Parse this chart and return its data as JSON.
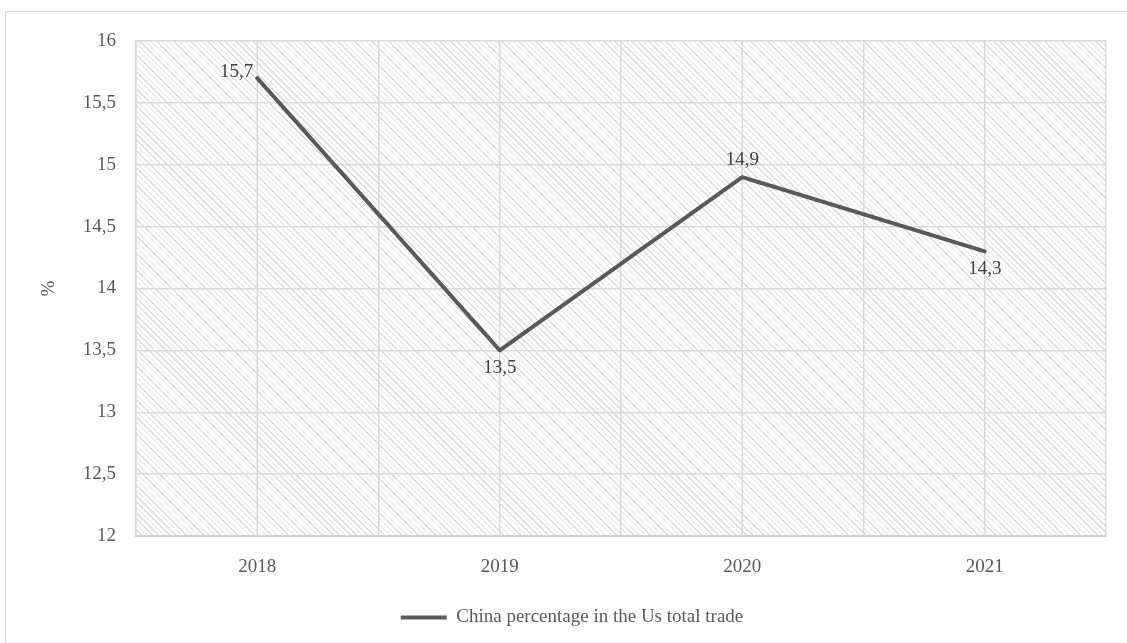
{
  "chart_data": {
    "type": "line",
    "categories": [
      "2018",
      "2019",
      "2020",
      "2021"
    ],
    "series": [
      {
        "name": "China percentage in the Us total trade",
        "color": "#595959",
        "values": [
          15.7,
          13.5,
          14.9,
          14.3
        ],
        "value_labels": [
          "15,7",
          "13,5",
          "14,9",
          "14,3"
        ]
      }
    ],
    "ylabel": "%",
    "ylim": [
      12,
      16
    ],
    "yticks": [
      12,
      {
        "value": 12.5,
        "label": "12,5"
      },
      13,
      {
        "value": 13.5,
        "label": "13,5"
      },
      14,
      {
        "value": 14.5,
        "label": "14,5"
      },
      15,
      {
        "value": 15.5,
        "label": "15,5"
      },
      16
    ],
    "grid": true,
    "legend": "bottom",
    "marker": "none"
  }
}
